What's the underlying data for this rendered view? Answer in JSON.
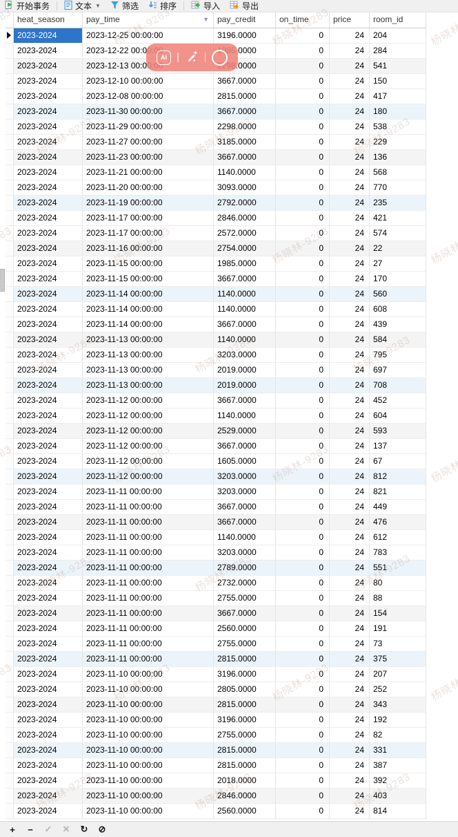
{
  "toolbar": {
    "begin_transaction": "开始事务",
    "text": "文本",
    "filter": "筛选",
    "sort": "排序",
    "import": "导入",
    "export": "导出"
  },
  "table": {
    "columns": [
      {
        "key": "heat_season",
        "label": "heat_season"
      },
      {
        "key": "pay_time",
        "label": "pay_time"
      },
      {
        "key": "pay_credit",
        "label": "pay_credit"
      },
      {
        "key": "on_time",
        "label": "on_time"
      },
      {
        "key": "price",
        "label": "price"
      },
      {
        "key": "room_id",
        "label": "room_id"
      }
    ],
    "selected": {
      "row_index": 0,
      "column": "heat_season",
      "value": "2023-2024"
    },
    "rows": [
      [
        "2023-2024",
        "2023-12-25 00:00:00",
        "3196.0000",
        "0",
        "24",
        "204"
      ],
      [
        "2023-2024",
        "2023-12-22 00:00:00",
        "1985.0000",
        "0",
        "24",
        "284"
      ],
      [
        "2023-2024",
        "2023-12-13 00:00:00",
        "2298.0000",
        "0",
        "24",
        "541"
      ],
      [
        "2023-2024",
        "2023-12-10 00:00:00",
        "3667.0000",
        "0",
        "24",
        "150"
      ],
      [
        "2023-2024",
        "2023-12-08 00:00:00",
        "2815.0000",
        "0",
        "24",
        "417"
      ],
      [
        "2023-2024",
        "2023-11-30 00:00:00",
        "3667.0000",
        "0",
        "24",
        "180"
      ],
      [
        "2023-2024",
        "2023-11-29 00:00:00",
        "2298.0000",
        "0",
        "24",
        "538"
      ],
      [
        "2023-2024",
        "2023-11-27 00:00:00",
        "3185.0000",
        "0",
        "24",
        "229"
      ],
      [
        "2023-2024",
        "2023-11-23 00:00:00",
        "3667.0000",
        "0",
        "24",
        "136"
      ],
      [
        "2023-2024",
        "2023-11-21 00:00:00",
        "1140.0000",
        "0",
        "24",
        "568"
      ],
      [
        "2023-2024",
        "2023-11-20 00:00:00",
        "3093.0000",
        "0",
        "24",
        "770"
      ],
      [
        "2023-2024",
        "2023-11-19 00:00:00",
        "2792.0000",
        "0",
        "24",
        "235"
      ],
      [
        "2023-2024",
        "2023-11-17 00:00:00",
        "2846.0000",
        "0",
        "24",
        "421"
      ],
      [
        "2023-2024",
        "2023-11-17 00:00:00",
        "2572.0000",
        "0",
        "24",
        "574"
      ],
      [
        "2023-2024",
        "2023-11-16 00:00:00",
        "2754.0000",
        "0",
        "24",
        "22"
      ],
      [
        "2023-2024",
        "2023-11-15 00:00:00",
        "1985.0000",
        "0",
        "24",
        "27"
      ],
      [
        "2023-2024",
        "2023-11-15 00:00:00",
        "3667.0000",
        "0",
        "24",
        "170"
      ],
      [
        "2023-2024",
        "2023-11-14 00:00:00",
        "1140.0000",
        "0",
        "24",
        "560"
      ],
      [
        "2023-2024",
        "2023-11-14 00:00:00",
        "1140.0000",
        "0",
        "24",
        "608"
      ],
      [
        "2023-2024",
        "2023-11-14 00:00:00",
        "3667.0000",
        "0",
        "24",
        "439"
      ],
      [
        "2023-2024",
        "2023-11-13 00:00:00",
        "1140.0000",
        "0",
        "24",
        "584"
      ],
      [
        "2023-2024",
        "2023-11-13 00:00:00",
        "3203.0000",
        "0",
        "24",
        "795"
      ],
      [
        "2023-2024",
        "2023-11-13 00:00:00",
        "2019.0000",
        "0",
        "24",
        "697"
      ],
      [
        "2023-2024",
        "2023-11-13 00:00:00",
        "2019.0000",
        "0",
        "24",
        "708"
      ],
      [
        "2023-2024",
        "2023-11-12 00:00:00",
        "3667.0000",
        "0",
        "24",
        "452"
      ],
      [
        "2023-2024",
        "2023-11-12 00:00:00",
        "1140.0000",
        "0",
        "24",
        "604"
      ],
      [
        "2023-2024",
        "2023-11-12 00:00:00",
        "2529.0000",
        "0",
        "24",
        "593"
      ],
      [
        "2023-2024",
        "2023-11-12 00:00:00",
        "3667.0000",
        "0",
        "24",
        "137"
      ],
      [
        "2023-2024",
        "2023-11-12 00:00:00",
        "1605.0000",
        "0",
        "24",
        "67"
      ],
      [
        "2023-2024",
        "2023-11-12 00:00:00",
        "3203.0000",
        "0",
        "24",
        "812"
      ],
      [
        "2023-2024",
        "2023-11-11 00:00:00",
        "3203.0000",
        "0",
        "24",
        "821"
      ],
      [
        "2023-2024",
        "2023-11-11 00:00:00",
        "3667.0000",
        "0",
        "24",
        "449"
      ],
      [
        "2023-2024",
        "2023-11-11 00:00:00",
        "3667.0000",
        "0",
        "24",
        "476"
      ],
      [
        "2023-2024",
        "2023-11-11 00:00:00",
        "1140.0000",
        "0",
        "24",
        "612"
      ],
      [
        "2023-2024",
        "2023-11-11 00:00:00",
        "3203.0000",
        "0",
        "24",
        "783"
      ],
      [
        "2023-2024",
        "2023-11-11 00:00:00",
        "2789.0000",
        "0",
        "24",
        "551"
      ],
      [
        "2023-2024",
        "2023-11-11 00:00:00",
        "2732.0000",
        "0",
        "24",
        "80"
      ],
      [
        "2023-2024",
        "2023-11-11 00:00:00",
        "2755.0000",
        "0",
        "24",
        "88"
      ],
      [
        "2023-2024",
        "2023-11-11 00:00:00",
        "3667.0000",
        "0",
        "24",
        "154"
      ],
      [
        "2023-2024",
        "2023-11-11 00:00:00",
        "2560.0000",
        "0",
        "24",
        "191"
      ],
      [
        "2023-2024",
        "2023-11-11 00:00:00",
        "2755.0000",
        "0",
        "24",
        "73"
      ],
      [
        "2023-2024",
        "2023-11-11 00:00:00",
        "2815.0000",
        "0",
        "24",
        "375"
      ],
      [
        "2023-2024",
        "2023-11-10 00:00:00",
        "3196.0000",
        "0",
        "24",
        "207"
      ],
      [
        "2023-2024",
        "2023-11-10 00:00:00",
        "2805.0000",
        "0",
        "24",
        "252"
      ],
      [
        "2023-2024",
        "2023-11-10 00:00:00",
        "2815.0000",
        "0",
        "24",
        "343"
      ],
      [
        "2023-2024",
        "2023-11-10 00:00:00",
        "3196.0000",
        "0",
        "24",
        "192"
      ],
      [
        "2023-2024",
        "2023-11-10 00:00:00",
        "2755.0000",
        "0",
        "24",
        "82"
      ],
      [
        "2023-2024",
        "2023-11-10 00:00:00",
        "2815.0000",
        "0",
        "24",
        "331"
      ],
      [
        "2023-2024",
        "2023-11-10 00:00:00",
        "2815.0000",
        "0",
        "24",
        "387"
      ],
      [
        "2023-2024",
        "2023-11-10 00:00:00",
        "2018.0000",
        "0",
        "24",
        "392"
      ],
      [
        "2023-2024",
        "2023-11-10 00:00:00",
        "2846.0000",
        "0",
        "24",
        "403"
      ],
      [
        "2023-2024",
        "2023-11-10 00:00:00",
        "2560.0000",
        "0",
        "24",
        "814"
      ]
    ]
  },
  "overlay_toolbar": {
    "ai_label": "AI",
    "icons": [
      "ai-icon",
      "edit-pencil-icon",
      "record-circle-icon"
    ]
  },
  "bottom_toolbar": {
    "add": "+",
    "remove": "−",
    "apply": "✓",
    "discard": "✕",
    "refresh": "↻",
    "stop": "⊘"
  },
  "watermark": {
    "text": "杨晓林-9283"
  },
  "colors": {
    "selection_blue": "#2e74c9",
    "stripe_gray": "#f4f4f4",
    "stripe_blue": "#ecf4fb",
    "overlay_pink": "#f0837a",
    "toolbar_bg": "#f0f0f0",
    "filter_blue": "#35a0e0",
    "import_green": "#3fae49",
    "export_orange": "#f29100"
  }
}
